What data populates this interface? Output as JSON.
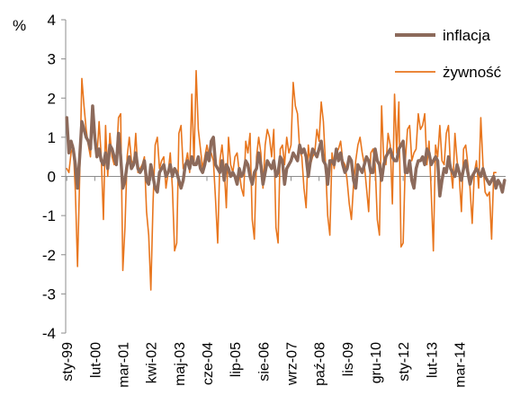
{
  "chart_data": {
    "type": "line",
    "ylabel": "%",
    "ylim": [
      -4,
      4
    ],
    "yticks": [
      "4",
      "3",
      "2",
      "1",
      "0",
      "-1",
      "-2",
      "-3",
      "-4"
    ],
    "x_tick_labels": [
      "sty-99",
      "lut-00",
      "mar-01",
      "kwi-02",
      "maj-03",
      "cze-04",
      "lip-05",
      "sie-06",
      "wrz-07",
      "paź-08",
      "lis-09",
      "gru-10",
      "sty-12",
      "lut-13",
      "mar-14"
    ],
    "x_start": "1999-01",
    "x_end": "2014-07",
    "grid": false,
    "legend_position": "top-right",
    "series": [
      {
        "name": "inflacja",
        "color": "#8C6A5B",
        "values": [
          1.5,
          0.6,
          0.9,
          0.7,
          0.3,
          -0.3,
          0.5,
          1.4,
          1.2,
          1.0,
          0.9,
          0.7,
          1.8,
          1.0,
          0.5,
          0.7,
          0.4,
          0.3,
          0.6,
          0.2,
          0.8,
          0.7,
          0.5,
          0.3,
          1.1,
          0.5,
          -0.3,
          -0.1,
          0.3,
          0.5,
          0.2,
          0.3,
          0.6,
          0.2,
          0.1,
          0.2,
          0.4,
          -0.1,
          -0.2,
          0.3,
          0.0,
          -0.3,
          -0.4,
          0.1,
          0.2,
          0.3,
          0.0,
          0.1,
          0.3,
          0.0,
          0.2,
          0.1,
          -0.1,
          -0.3,
          -0.1,
          0.3,
          0.4,
          0.2,
          0.5,
          0.3,
          0.3,
          0.5,
          0.2,
          0.1,
          0.3,
          0.6,
          0.4,
          0.9,
          1.0,
          0.3,
          0.2,
          0.1,
          0.4,
          -0.1,
          0.3,
          0.2,
          0.0,
          0.1,
          0.0,
          -0.2,
          0.2,
          0.0,
          0.1,
          0.4,
          0.3,
          0.0,
          -0.2,
          0.1,
          0.2,
          0.6,
          0.3,
          -0.2,
          0.1,
          0.4,
          0.3,
          0.2,
          0.4,
          0.0,
          0.1,
          0.5,
          0.4,
          -0.2,
          0.2,
          0.3,
          0.4,
          0.6,
          0.5,
          0.4,
          0.8,
          0.6,
          0.7,
          0.5,
          0.0,
          0.4,
          0.7,
          0.6,
          0.5,
          0.7,
          0.9,
          0.4,
          0.3,
          -0.2,
          0.4,
          0.4,
          0.3,
          0.7,
          0.4,
          0.6,
          0.3,
          0.1,
          0.2,
          0.5,
          0.4,
          -0.1,
          -0.3,
          0.3,
          0.2,
          0.1,
          0.3,
          0.5,
          0.4,
          0.1,
          0.1,
          0.7,
          0.4,
          0.3,
          -0.1,
          0.3,
          0.5,
          0.6,
          0.7,
          0.5,
          0.4,
          0.4,
          0.7,
          0.8,
          0.9,
          0.1,
          0.1,
          0.4,
          -0.1,
          -0.3,
          0.2,
          0.4,
          0.4,
          0.5,
          0.3,
          0.7,
          0.6,
          0.3,
          0.4,
          0.5,
          0.4,
          -0.5,
          -0.1,
          0.2,
          0.1,
          0.5,
          0.2,
          0.1,
          0.0,
          0.3,
          0.1,
          -0.1,
          0.2,
          0.4,
          0.1,
          -0.2,
          0.0,
          0.1,
          0.2,
          0.1,
          0.0,
          0.2,
          0.0,
          -0.1,
          -0.2,
          -0.1,
          0.0,
          -0.3,
          -0.1,
          -0.2,
          -0.4,
          -0.1
        ]
      },
      {
        "name": "żywność",
        "color": "#E8761E",
        "values": [
          0.2,
          0.1,
          0.6,
          0.8,
          -0.4,
          -2.3,
          0.0,
          2.5,
          1.8,
          1.2,
          0.8,
          0.5,
          1.8,
          1.2,
          0.5,
          1.4,
          0.5,
          -1.1,
          1.3,
          0.0,
          1.1,
          0.5,
          0.3,
          0.4,
          1.5,
          1.6,
          -2.4,
          -1.3,
          0.5,
          1.0,
          0.4,
          0.3,
          1.1,
          0.1,
          0.2,
          0.3,
          0.5,
          -0.9,
          -1.5,
          -2.9,
          -0.7,
          0.8,
          1.0,
          0.2,
          0.4,
          0.5,
          -0.3,
          0.1,
          0.6,
          -0.3,
          -1.9,
          -1.7,
          1.1,
          1.3,
          0.2,
          0.3,
          0.6,
          0.1,
          2.1,
          0.3,
          2.7,
          1.2,
          0.7,
          0.2,
          0.5,
          0.8,
          0.5,
          0.6,
          0.4,
          -0.6,
          -1.7,
          0.4,
          0.8,
          0.2,
          -0.8,
          1.0,
          0.3,
          0.1,
          0.5,
          0.6,
          0.1,
          -0.3,
          -0.5,
          0.9,
          0.6,
          1.1,
          -1.1,
          -1.6,
          0.5,
          1.0,
          0.6,
          -0.3,
          0.8,
          1.2,
          1.0,
          0.5,
          1.2,
          -1.3,
          -1.7,
          0.7,
          0.8,
          0.3,
          1.0,
          0.6,
          0.8,
          2.4,
          1.8,
          1.6,
          0.7,
          0.5,
          -0.3,
          -0.8,
          0.8,
          0.3,
          0.5,
          0.6,
          1.2,
          0.9,
          1.9,
          1.4,
          0.3,
          -1.0,
          -1.5,
          0.6,
          0.2,
          0.6,
          0.7,
          0.9,
          0.4,
          0.3,
          -0.1,
          -0.7,
          -1.1,
          -0.2,
          0.4,
          0.8,
          1.0,
          0.6,
          0.3,
          -0.3,
          -0.9,
          0.6,
          0.7,
          0.3,
          -1.1,
          -1.5,
          1.8,
          0.4,
          0.3,
          1.1,
          0.8,
          -0.7,
          2.1,
          0.6,
          1.9,
          -1.8,
          -1.7,
          0.4,
          1.2,
          1.3,
          0.4,
          0.6,
          0.7,
          1.6,
          1.2,
          1.3,
          1.6,
          0.3,
          0.9,
          -0.4,
          -1.9,
          0.8,
          0.5,
          1.3,
          0.4,
          0.3,
          1.1,
          1.3,
          0.2,
          -0.3,
          1.1,
          0.4,
          0.0,
          -0.9,
          0.7,
          0.8,
          0.3,
          -0.3,
          -1.2,
          0.1,
          0.4,
          -0.3,
          1.5,
          0.3,
          -0.4,
          -0.5,
          -0.4,
          -1.6,
          0.1,
          0.1
        ]
      }
    ]
  }
}
